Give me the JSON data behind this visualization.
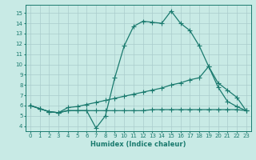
{
  "xlabel": "Humidex (Indice chaleur)",
  "bg_color": "#c8eae5",
  "grid_color": "#b0d8d0",
  "line_color": "#1a7a6e",
  "x_ticks": [
    0,
    1,
    2,
    3,
    4,
    5,
    6,
    7,
    8,
    9,
    10,
    11,
    12,
    13,
    14,
    15,
    16,
    17,
    18,
    19,
    20,
    21,
    22,
    23
  ],
  "y_ticks": [
    4,
    5,
    6,
    7,
    8,
    9,
    10,
    11,
    12,
    13,
    14,
    15
  ],
  "ylim": [
    3.5,
    15.8
  ],
  "xlim": [
    -0.5,
    23.5
  ],
  "line1_x": [
    0,
    1,
    2,
    3,
    4,
    5,
    6,
    7,
    8,
    9,
    10,
    11,
    12,
    13,
    14,
    15,
    16,
    17,
    18,
    19,
    20,
    21,
    22,
    23
  ],
  "line1_y": [
    6.0,
    5.7,
    5.4,
    5.3,
    5.5,
    5.5,
    5.5,
    3.8,
    5.0,
    8.7,
    11.8,
    13.7,
    14.2,
    14.1,
    14.0,
    15.2,
    14.0,
    13.3,
    11.8,
    9.8,
    7.8,
    6.4,
    5.9,
    5.5
  ],
  "line2_x": [
    0,
    1,
    2,
    3,
    4,
    5,
    6,
    7,
    8,
    9,
    10,
    11,
    12,
    13,
    14,
    15,
    16,
    17,
    18,
    19,
    20,
    21,
    22,
    23
  ],
  "line2_y": [
    6.0,
    5.7,
    5.4,
    5.3,
    5.8,
    5.9,
    6.1,
    6.3,
    6.5,
    6.7,
    6.9,
    7.1,
    7.3,
    7.5,
    7.7,
    8.0,
    8.2,
    8.5,
    8.7,
    9.8,
    8.2,
    7.5,
    6.8,
    5.5
  ],
  "line3_x": [
    0,
    1,
    2,
    3,
    4,
    5,
    6,
    7,
    8,
    9,
    10,
    11,
    12,
    13,
    14,
    15,
    16,
    17,
    18,
    19,
    20,
    21,
    22,
    23
  ],
  "line3_y": [
    6.0,
    5.7,
    5.4,
    5.3,
    5.5,
    5.5,
    5.5,
    5.5,
    5.5,
    5.5,
    5.5,
    5.5,
    5.5,
    5.6,
    5.6,
    5.6,
    5.6,
    5.6,
    5.6,
    5.6,
    5.6,
    5.6,
    5.6,
    5.5
  ]
}
